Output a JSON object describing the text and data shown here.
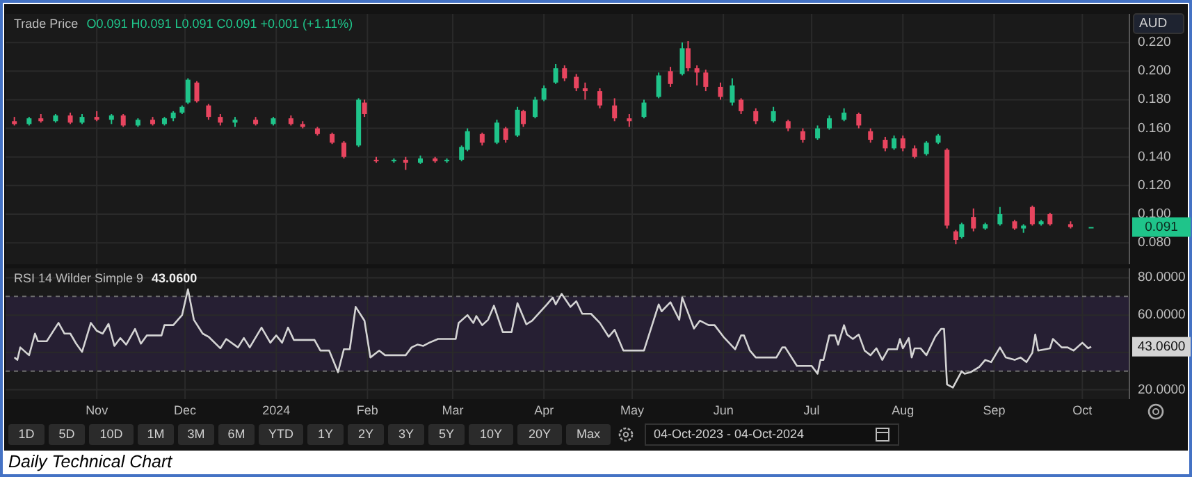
{
  "chart_data": [
    {
      "type": "candlestick",
      "title": "Trade Price",
      "ylabel": "AUD",
      "tick_labels": "y",
      "grid": true,
      "annotations": [
        "O0.091 H0.091 L0.091 C0.091 +0.001 (+1.11%)",
        {
          "text": "0.091",
          "y": 0.091
        }
      ],
      "colors": [
        "#e8455f",
        "#1fc48a",
        "#e8455f",
        "#1fc48a",
        "#e8455f",
        "#1fc48a",
        "#e8455f",
        "#1fc48a",
        "#e8455f",
        "#1fc48a",
        "#e8455f",
        "#1fc48a",
        "#1fc48a",
        "#1fc48a",
        "#1fc48a",
        "#e8455f",
        "#e8455f",
        "#e8455f",
        "#1fc48a",
        "#e8455f",
        "#1fc48a",
        "#e8455f",
        "#e8455f",
        "#e8455f",
        "#e8455f",
        "#e8455f",
        "#1fc48a",
        "#e8455f",
        "#e8455f",
        "#1fc48a",
        "#e8455f",
        "#1fc48a",
        "#e8455f",
        "#1fc48a",
        "#1fc48a",
        "#1fc48a",
        "#e8455f",
        "#1fc48a",
        "#e8455f",
        "#1fc48a",
        "#e8455f",
        "#1fc48a",
        "#1fc48a",
        "#1fc48a",
        "#e8455f",
        "#e8455f",
        "#e8455f",
        "#e8455f",
        "#e8455f",
        "#e8455f",
        "#1fc48a",
        "#1fc48a",
        "#e8455f",
        "#1fc48a",
        "#e8455f",
        "#e8455f",
        "#e8455f",
        "#e8455f",
        "#1fc48a",
        "#e8455f",
        "#e8455f",
        "#1fc48a",
        "#e8455f",
        "#e8455f",
        "#1fc48a",
        "#1fc48a",
        "#1fc48a",
        "#e8455f",
        "#e8455f",
        "#e8455f",
        "#1fc48a",
        "#e8455f",
        "#e8455f",
        "#1fc48a",
        "#1fc48a",
        "#e8455f",
        "#e8455f",
        "#1fc48a",
        "#e8455f",
        "#1fc48a",
        "#1fc48a",
        "#e8455f",
        "#1fc48a",
        "#e8455f",
        "#1fc48a",
        "#e8455f",
        "#e8455f",
        "#1fc48a"
      ],
      "xlim": [
        "2023-10-01",
        "2024-10-17"
      ],
      "xticks": [
        {
          "value": "2023-11-01",
          "label": null
        },
        {
          "value": "2023-12-01",
          "label": null
        },
        {
          "value": "2024-01-01",
          "label": null
        },
        {
          "value": "2024-02-01",
          "label": null
        },
        {
          "value": "2024-03-01",
          "label": null
        },
        {
          "value": "2024-04-01",
          "label": null
        },
        {
          "value": "2024-05-01",
          "label": null
        },
        {
          "value": "2024-06-01",
          "label": null
        },
        {
          "value": "2024-07-01",
          "label": null
        },
        {
          "value": "2024-08-01",
          "label": null
        },
        {
          "value": "2024-09-01",
          "label": null
        },
        {
          "value": "2024-10-01",
          "label": null
        }
      ],
      "ylim": [
        0.065,
        0.24
      ],
      "yticks": [
        {
          "value": 0.08,
          "label": "0.080"
        },
        {
          "value": 0.1,
          "label": "0.100"
        },
        {
          "value": 0.12,
          "label": "0.120"
        },
        {
          "value": 0.14,
          "label": "0.140"
        },
        {
          "value": 0.16,
          "label": "0.160"
        },
        {
          "value": 0.18,
          "label": "0.180"
        },
        {
          "value": 0.2,
          "label": "0.200"
        },
        {
          "value": 0.22,
          "label": "0.220"
        }
      ],
      "x": [
        "2023-10-04",
        "2023-10-09",
        "2023-10-13",
        "2023-10-18",
        "2023-10-23",
        "2023-10-27",
        "2023-11-01",
        "2023-11-06",
        "2023-11-10",
        "2023-11-15",
        "2023-11-20",
        "2023-11-24",
        "2023-11-27",
        "2023-11-30",
        "2023-12-02",
        "2023-12-05",
        "2023-12-09",
        "2023-12-13",
        "2023-12-18",
        "2023-12-25",
        "2023-12-31",
        "2024-01-06",
        "2024-01-10",
        "2024-01-15",
        "2024-01-20",
        "2024-01-24",
        "2024-01-29",
        "2024-01-31",
        "2024-02-04",
        "2024-02-10",
        "2024-02-14",
        "2024-02-19",
        "2024-02-24",
        "2024-02-28",
        "2024-03-04",
        "2024-03-06",
        "2024-03-11",
        "2024-03-16",
        "2024-03-19",
        "2024-03-23",
        "2024-03-25",
        "2024-03-29",
        "2024-04-01",
        "2024-04-05",
        "2024-04-08",
        "2024-04-12",
        "2024-04-15",
        "2024-04-20",
        "2024-04-25",
        "2024-04-30",
        "2024-05-05",
        "2024-05-10",
        "2024-05-14",
        "2024-05-18",
        "2024-05-20",
        "2024-05-23",
        "2024-05-26",
        "2024-05-31",
        "2024-06-04",
        "2024-06-07",
        "2024-06-12",
        "2024-06-18",
        "2024-06-23",
        "2024-06-28",
        "2024-07-03",
        "2024-07-07",
        "2024-07-12",
        "2024-07-17",
        "2024-07-21",
        "2024-07-26",
        "2024-07-29",
        "2024-08-01",
        "2024-08-05",
        "2024-08-09",
        "2024-08-13",
        "2024-08-16",
        "2024-08-19",
        "2024-08-21",
        "2024-08-25",
        "2024-08-29",
        "2024-09-03",
        "2024-09-08",
        "2024-09-11",
        "2024-09-14",
        "2024-09-17",
        "2024-09-20",
        "2024-09-27",
        "2024-10-04"
      ],
      "ohlc": [
        [
          0.165,
          0.168,
          0.162,
          0.163
        ],
        [
          0.163,
          0.168,
          0.162,
          0.167
        ],
        [
          0.167,
          0.17,
          0.164,
          0.165
        ],
        [
          0.165,
          0.17,
          0.164,
          0.169
        ],
        [
          0.169,
          0.171,
          0.163,
          0.164
        ],
        [
          0.164,
          0.17,
          0.163,
          0.168
        ],
        [
          0.168,
          0.172,
          0.165,
          0.166
        ],
        [
          0.166,
          0.17,
          0.163,
          0.169
        ],
        [
          0.169,
          0.17,
          0.161,
          0.162
        ],
        [
          0.162,
          0.167,
          0.161,
          0.166
        ],
        [
          0.166,
          0.168,
          0.162,
          0.163
        ],
        [
          0.163,
          0.168,
          0.162,
          0.167
        ],
        [
          0.167,
          0.172,
          0.165,
          0.171
        ],
        [
          0.171,
          0.176,
          0.17,
          0.175
        ],
        [
          0.178,
          0.195,
          0.177,
          0.194
        ],
        [
          0.192,
          0.193,
          0.178,
          0.179
        ],
        [
          0.176,
          0.177,
          0.166,
          0.168
        ],
        [
          0.168,
          0.17,
          0.162,
          0.164
        ],
        [
          0.164,
          0.168,
          0.161,
          0.166
        ],
        [
          0.166,
          0.168,
          0.162,
          0.163
        ],
        [
          0.163,
          0.168,
          0.162,
          0.167
        ],
        [
          0.167,
          0.169,
          0.162,
          0.163
        ],
        [
          0.163,
          0.165,
          0.16,
          0.161
        ],
        [
          0.16,
          0.161,
          0.155,
          0.156
        ],
        [
          0.156,
          0.157,
          0.149,
          0.15
        ],
        [
          0.15,
          0.151,
          0.139,
          0.14
        ],
        [
          0.148,
          0.181,
          0.147,
          0.18
        ],
        [
          0.178,
          0.18,
          0.168,
          0.17
        ],
        [
          0.138,
          0.14,
          0.136,
          0.137
        ],
        [
          0.137,
          0.139,
          0.136,
          0.138
        ],
        [
          0.138,
          0.14,
          0.131,
          0.136
        ],
        [
          0.136,
          0.141,
          0.135,
          0.139
        ],
        [
          0.139,
          0.14,
          0.136,
          0.137
        ],
        [
          0.137,
          0.139,
          0.136,
          0.138
        ],
        [
          0.138,
          0.148,
          0.137,
          0.147
        ],
        [
          0.145,
          0.16,
          0.144,
          0.158
        ],
        [
          0.156,
          0.157,
          0.148,
          0.15
        ],
        [
          0.15,
          0.166,
          0.149,
          0.164
        ],
        [
          0.16,
          0.161,
          0.15,
          0.152
        ],
        [
          0.155,
          0.175,
          0.154,
          0.173
        ],
        [
          0.172,
          0.173,
          0.161,
          0.163
        ],
        [
          0.168,
          0.182,
          0.167,
          0.18
        ],
        [
          0.18,
          0.19,
          0.179,
          0.188
        ],
        [
          0.192,
          0.205,
          0.191,
          0.202
        ],
        [
          0.202,
          0.204,
          0.193,
          0.195
        ],
        [
          0.196,
          0.198,
          0.186,
          0.188
        ],
        [
          0.188,
          0.192,
          0.18,
          0.186
        ],
        [
          0.186,
          0.188,
          0.174,
          0.176
        ],
        [
          0.176,
          0.181,
          0.165,
          0.167
        ],
        [
          0.167,
          0.17,
          0.161,
          0.165
        ],
        [
          0.168,
          0.18,
          0.167,
          0.178
        ],
        [
          0.182,
          0.199,
          0.181,
          0.197
        ],
        [
          0.2,
          0.203,
          0.189,
          0.191
        ],
        [
          0.198,
          0.22,
          0.197,
          0.216
        ],
        [
          0.216,
          0.221,
          0.2,
          0.202
        ],
        [
          0.202,
          0.204,
          0.19,
          0.199
        ],
        [
          0.199,
          0.201,
          0.186,
          0.189
        ],
        [
          0.189,
          0.192,
          0.18,
          0.182
        ],
        [
          0.178,
          0.195,
          0.176,
          0.19
        ],
        [
          0.18,
          0.181,
          0.17,
          0.172
        ],
        [
          0.172,
          0.174,
          0.163,
          0.165
        ],
        [
          0.165,
          0.175,
          0.164,
          0.172
        ],
        [
          0.165,
          0.166,
          0.158,
          0.16
        ],
        [
          0.158,
          0.16,
          0.15,
          0.152
        ],
        [
          0.153,
          0.162,
          0.152,
          0.16
        ],
        [
          0.16,
          0.169,
          0.159,
          0.167
        ],
        [
          0.166,
          0.174,
          0.165,
          0.171
        ],
        [
          0.17,
          0.171,
          0.16,
          0.162
        ],
        [
          0.158,
          0.16,
          0.15,
          0.152
        ],
        [
          0.152,
          0.154,
          0.144,
          0.146
        ],
        [
          0.146,
          0.155,
          0.145,
          0.153
        ],
        [
          0.153,
          0.155,
          0.144,
          0.146
        ],
        [
          0.146,
          0.148,
          0.139,
          0.14
        ],
        [
          0.142,
          0.151,
          0.141,
          0.15
        ],
        [
          0.15,
          0.156,
          0.149,
          0.155
        ],
        [
          0.145,
          0.146,
          0.09,
          0.092
        ],
        [
          0.088,
          0.089,
          0.079,
          0.082
        ],
        [
          0.084,
          0.094,
          0.083,
          0.093
        ],
        [
          0.098,
          0.104,
          0.088,
          0.09
        ],
        [
          0.09,
          0.094,
          0.089,
          0.093
        ],
        [
          0.093,
          0.105,
          0.092,
          0.1
        ],
        [
          0.095,
          0.096,
          0.089,
          0.09
        ],
        [
          0.09,
          0.093,
          0.087,
          0.092
        ],
        [
          0.105,
          0.106,
          0.092,
          0.093
        ],
        [
          0.093,
          0.096,
          0.092,
          0.095
        ],
        [
          0.1,
          0.101,
          0.092,
          0.093
        ],
        [
          0.093,
          0.095,
          0.09,
          0.091
        ],
        [
          0.091,
          0.091,
          0.091,
          0.091
        ]
      ]
    },
    {
      "type": "line",
      "title": "RSI 14 Wilder Simple 9",
      "grid": true,
      "color": "#d4d4d4",
      "annotations": [
        "43.0600",
        {
          "text": "43.0600",
          "y": 43.06
        }
      ],
      "xlim": [
        "2023-10-01",
        "2024-10-17"
      ],
      "xticks": [
        {
          "value": "2023-11-01",
          "label": "Nov"
        },
        {
          "value": "2023-12-01",
          "label": "Dec"
        },
        {
          "value": "2024-01-01",
          "label": "2024"
        },
        {
          "value": "2024-02-01",
          "label": "Feb"
        },
        {
          "value": "2024-03-01",
          "label": "Mar"
        },
        {
          "value": "2024-04-01",
          "label": "Apr"
        },
        {
          "value": "2024-05-01",
          "label": "May"
        },
        {
          "value": "2024-06-01",
          "label": "Jun"
        },
        {
          "value": "2024-07-01",
          "label": "Jul"
        },
        {
          "value": "2024-08-01",
          "label": "Aug"
        },
        {
          "value": "2024-09-01",
          "label": "Sep"
        },
        {
          "value": "2024-10-01",
          "label": "Oct"
        }
      ],
      "ylim": [
        15,
        85
      ],
      "yticks": [
        {
          "value": 20,
          "label": "20.0000"
        },
        {
          "value": 40,
          "label": null
        },
        {
          "value": 60,
          "label": "60.0000"
        },
        {
          "value": 80,
          "label": "80.0000"
        }
      ],
      "bands": [
        {
          "axis": "y",
          "from": 30,
          "to": 70,
          "color": "#261f33"
        }
      ],
      "ref_lines": [
        {
          "axis": "y",
          "value": 70,
          "color": "#6e6e6e",
          "line_style": "dashed"
        },
        {
          "axis": "y",
          "value": 30,
          "color": "#6e6e6e",
          "line_style": "dashed"
        }
      ],
      "x": [
        "2023-10-04",
        "2023-10-05",
        "2023-10-06",
        "2023-10-09",
        "2023-10-11",
        "2023-10-12",
        "2023-10-15",
        "2023-10-19",
        "2023-10-21",
        "2023-10-23",
        "2023-10-25",
        "2023-10-27",
        "2023-10-30",
        "2023-11-01",
        "2023-11-03",
        "2023-11-05",
        "2023-11-07",
        "2023-11-09",
        "2023-11-11",
        "2023-11-14",
        "2023-11-16",
        "2023-11-18",
        "2023-11-23",
        "2023-11-24",
        "2023-11-27",
        "2023-11-30",
        "2023-12-02",
        "2023-12-04",
        "2023-12-07",
        "2023-12-09",
        "2023-12-13",
        "2023-12-15",
        "2023-12-19",
        "2023-12-21",
        "2023-12-23",
        "2023-12-27",
        "2023-12-30",
        "2024-01-01",
        "2024-01-03",
        "2024-01-05",
        "2024-01-07",
        "2024-01-14",
        "2024-01-16",
        "2024-01-19",
        "2024-01-22",
        "2024-01-24",
        "2024-01-26",
        "2024-01-28",
        "2024-01-31",
        "2024-02-02",
        "2024-02-05",
        "2024-02-07",
        "2024-02-14",
        "2024-02-16",
        "2024-02-18",
        "2024-02-20",
        "2024-02-22",
        "2024-02-25",
        "2024-03-02",
        "2024-03-03",
        "2024-03-06",
        "2024-03-08",
        "2024-03-09",
        "2024-03-11",
        "2024-03-13",
        "2024-03-15",
        "2024-03-18",
        "2024-03-21",
        "2024-03-23",
        "2024-03-26",
        "2024-03-28",
        "2024-04-02",
        "2024-04-04",
        "2024-04-05",
        "2024-04-07",
        "2024-04-10",
        "2024-04-12",
        "2024-04-14",
        "2024-04-17",
        "2024-04-20",
        "2024-04-23",
        "2024-04-25",
        "2024-04-28",
        "2024-05-05",
        "2024-05-10",
        "2024-05-11",
        "2024-05-14",
        "2024-05-17",
        "2024-05-18",
        "2024-05-22",
        "2024-05-24",
        "2024-05-27",
        "2024-05-29",
        "2024-06-01",
        "2024-06-05",
        "2024-06-07",
        "2024-06-08",
        "2024-06-10",
        "2024-06-12",
        "2024-06-19",
        "2024-06-21",
        "2024-06-22",
        "2024-06-26",
        "2024-07-01",
        "2024-07-03",
        "2024-07-04",
        "2024-07-05",
        "2024-07-07",
        "2024-07-09",
        "2024-07-10",
        "2024-07-12",
        "2024-07-13",
        "2024-07-15",
        "2024-07-17",
        "2024-07-19",
        "2024-07-21",
        "2024-07-23",
        "2024-07-25",
        "2024-07-27",
        "2024-07-30",
        "2024-07-31",
        "2024-08-01",
        "2024-08-03",
        "2024-08-04",
        "2024-08-05",
        "2024-08-07",
        "2024-08-09",
        "2024-08-12",
        "2024-08-14",
        "2024-08-15",
        "2024-08-16",
        "2024-08-18",
        "2024-08-21",
        "2024-08-22",
        "2024-08-24",
        "2024-08-27",
        "2024-08-29",
        "2024-08-31",
        "2024-09-03",
        "2024-09-05",
        "2024-09-08",
        "2024-09-10",
        "2024-09-12",
        "2024-09-14",
        "2024-09-15",
        "2024-09-16",
        "2024-09-20",
        "2024-09-21",
        "2024-09-24",
        "2024-09-26",
        "2024-09-28",
        "2024-10-01",
        "2024-10-03",
        "2024-10-04"
      ],
      "values": [
        37.3,
        36,
        42.7,
        38.5,
        50.1,
        46,
        46,
        55.8,
        50.1,
        50.1,
        44.7,
        40.3,
        55.8,
        51.6,
        50.1,
        55.3,
        43.5,
        47.7,
        44.2,
        52.6,
        44.7,
        49.1,
        49.1,
        54.6,
        54.6,
        60,
        73.8,
        57.5,
        50.1,
        48.4,
        42.2,
        47.2,
        42.7,
        47.7,
        42.7,
        53.3,
        45.2,
        49.1,
        45.2,
        53.3,
        46.7,
        46.7,
        41,
        41,
        29.4,
        41.7,
        41.7,
        64.4,
        57,
        37.3,
        41,
        38.5,
        38.5,
        42.7,
        44.2,
        43.5,
        45.2,
        47.2,
        47.2,
        55.8,
        60,
        55.8,
        59.5,
        54.6,
        57.5,
        65,
        50.9,
        50.9,
        66.4,
        55.1,
        57,
        65.7,
        69.4,
        65.7,
        71.4,
        64.4,
        67.4,
        60.7,
        60.7,
        55.8,
        48.4,
        52.1,
        41,
        41,
        65.7,
        62,
        66.9,
        57.5,
        69.4,
        52.8,
        57,
        54.6,
        54.6,
        48.4,
        41.7,
        49.1,
        49.1,
        41,
        37.3,
        37.3,
        42.7,
        42.7,
        32.8,
        32.8,
        28.6,
        36,
        36,
        49.1,
        49.1,
        44.2,
        54.6,
        49.6,
        47.2,
        49.6,
        41,
        38.5,
        42.2,
        36,
        41.7,
        41.7,
        47.2,
        42.2,
        47.7,
        37.3,
        42.2,
        42.2,
        38.5,
        48.4,
        52.6,
        52.6,
        22.9,
        21.2,
        29.9,
        28.6,
        29.4,
        32.3,
        36,
        34.8,
        42.7,
        37.3,
        36,
        37.3,
        34.8,
        39.8,
        49.6,
        41,
        42.2,
        47.2,
        42.7,
        42.7,
        41,
        45.2,
        42.2,
        43.06
      ]
    },
    {
      "type": "other",
      "annotations": [
        "1D",
        "5D",
        "10D",
        "1M",
        "3M",
        "6M",
        "YTD",
        "1Y",
        "2Y",
        "3Y",
        "5Y",
        "10Y",
        "20Y",
        "Max",
        "04-Oct-2023 - 04-Oct-2024",
        "Daily Technical Chart"
      ]
    }
  ]
}
